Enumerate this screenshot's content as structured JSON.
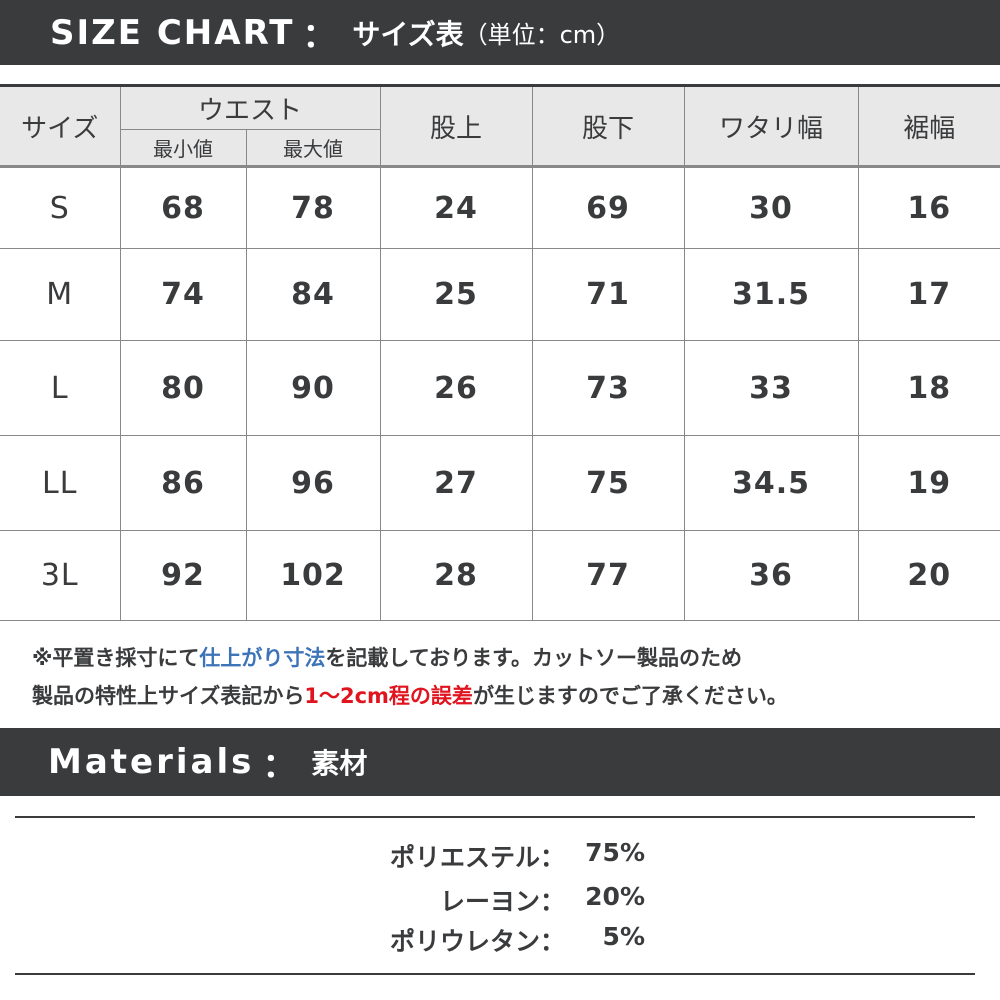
{
  "size_chart": {
    "title": "SIZE CHART",
    "sep": "：",
    "subtitle": "サイズ表",
    "unit": "（単位：cm）",
    "headers": {
      "size": "サイズ",
      "waist": "ウエスト",
      "waist_min": "最小値",
      "waist_max": "最大値",
      "rise": "股上",
      "inseam": "股下",
      "thigh": "ワタリ幅",
      "hem": "裾幅"
    },
    "rows": [
      [
        "S",
        "68",
        "78",
        "24",
        "69",
        "30",
        "16"
      ],
      [
        "M",
        "74",
        "84",
        "25",
        "71",
        "31.5",
        "17"
      ],
      [
        "L",
        "80",
        "90",
        "26",
        "73",
        "33",
        "18"
      ],
      [
        "LL",
        "86",
        "96",
        "27",
        "75",
        "34.5",
        "19"
      ],
      [
        "3L",
        "92",
        "102",
        "28",
        "77",
        "36",
        "20"
      ]
    ]
  },
  "notes": {
    "l1a": "※平置き採寸にて",
    "l1b": "仕上がり寸法",
    "l1c": "を記載しております。カットソー製品のため",
    "l2a": "製品の特性上サイズ表記から",
    "l2b": "1〜2cm程の誤差",
    "l2c": "が生じますのでご了承ください。"
  },
  "colors": {
    "bar": "#3a3b3d",
    "blue": "#3d74b8",
    "red": "#e0141e",
    "header_bg": "#e8e8e8"
  },
  "materials": {
    "title": "Materials",
    "sep": "：",
    "subtitle": "素材",
    "items": [
      {
        "name": "ポリエステル：",
        "value": "75%"
      },
      {
        "name": "レーヨン：",
        "value": "20%"
      },
      {
        "name": "ポリウレタン：",
        "value": "5%"
      }
    ]
  }
}
